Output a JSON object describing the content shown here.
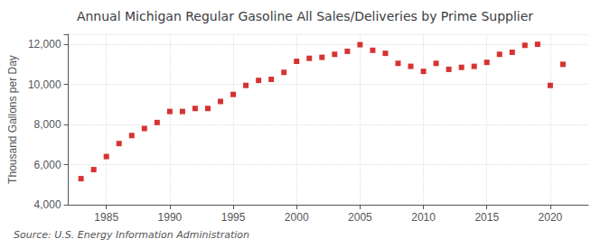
{
  "chart_data": {
    "type": "scatter",
    "title": "Annual Michigan Regular Gasoline All Sales/Deliveries by Prime Supplier",
    "ylabel": "Thousand Gallons per Day",
    "annotation": "Source: U.S. Energy Information Administration",
    "x": [
      1983,
      1984,
      1985,
      1986,
      1987,
      1988,
      1989,
      1990,
      1991,
      1992,
      1993,
      1994,
      1995,
      1996,
      1997,
      1998,
      1999,
      2000,
      2001,
      2002,
      2003,
      2004,
      2005,
      2006,
      2007,
      2008,
      2009,
      2010,
      2011,
      2012,
      2013,
      2014,
      2015,
      2016,
      2017,
      2018,
      2019,
      2020,
      2021
    ],
    "values": [
      5300,
      5750,
      6400,
      7050,
      7450,
      7800,
      8100,
      8650,
      8650,
      8800,
      8800,
      9150,
      9500,
      9950,
      10200,
      10250,
      10600,
      11150,
      11300,
      11350,
      11500,
      11650,
      11980,
      11700,
      11550,
      11050,
      10900,
      10650,
      11050,
      10750,
      10850,
      10900,
      11100,
      11500,
      11600,
      11950,
      12000,
      9950,
      11000
    ],
    "color": "#cc0000",
    "marker": "square",
    "xlim": [
      1982,
      2023
    ],
    "xticks": [
      1985,
      1990,
      1995,
      2000,
      2005,
      2010,
      2015,
      2020
    ],
    "ylim": [
      4000,
      12500
    ],
    "yticks": [
      {
        "value": 4000,
        "label": "4,000"
      },
      {
        "value": 6000,
        "label": "6,000"
      },
      {
        "value": 8000,
        "label": "8,000"
      },
      {
        "value": 10000,
        "label": "10,000"
      },
      {
        "value": 12000,
        "label": "12,000"
      }
    ],
    "grid": true
  }
}
